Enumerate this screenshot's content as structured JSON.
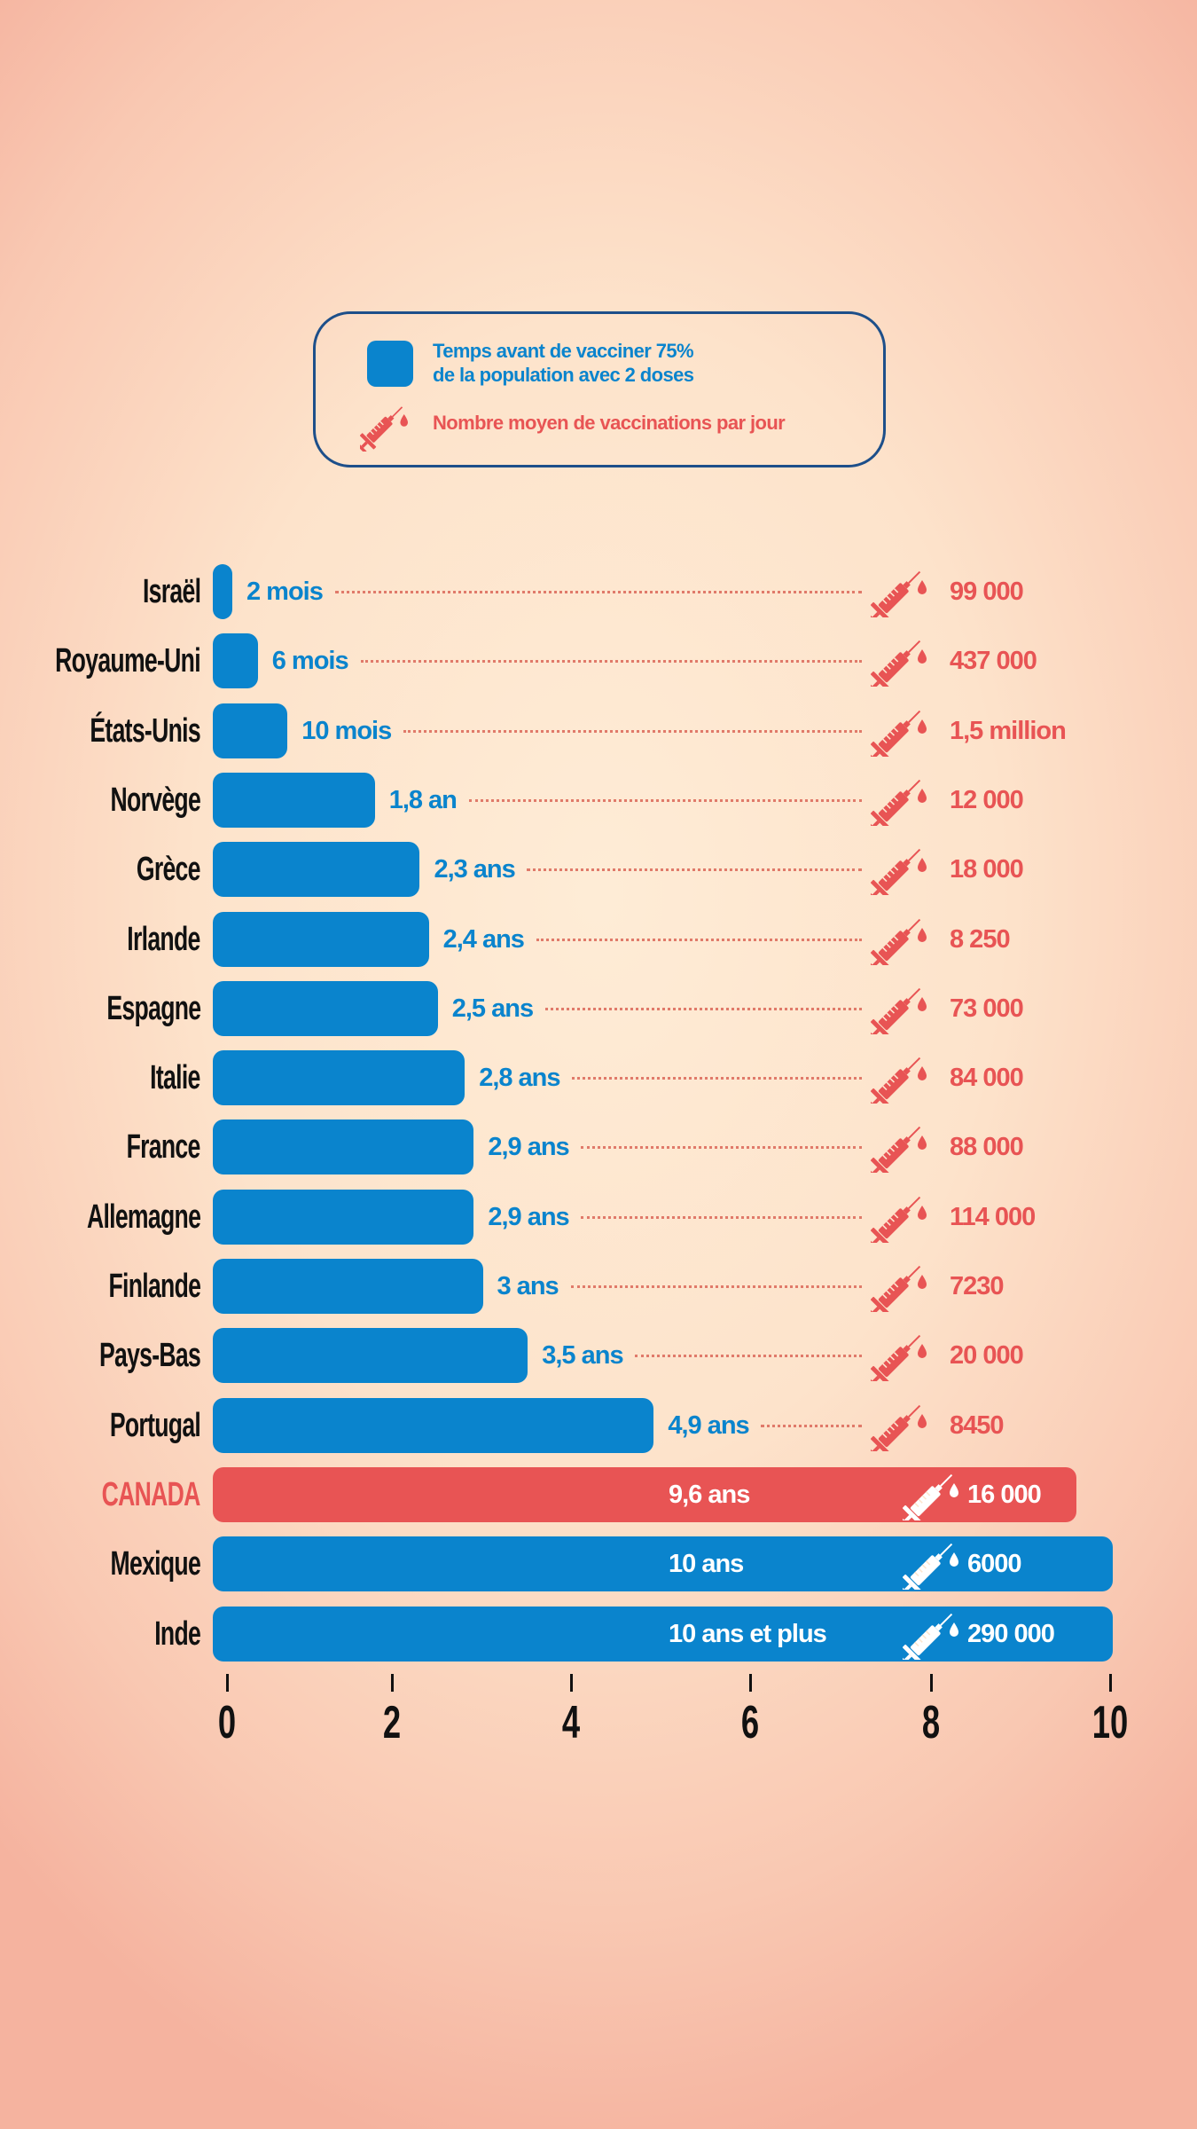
{
  "legend": {
    "bar_label_line1": "Temps avant de vacciner 75%",
    "bar_label_line2": "de la population avec 2 doses",
    "syringe_label": "Nombre moyen de vaccinations par jour"
  },
  "colors": {
    "blue": "#0a84cd",
    "red": "#e85454",
    "legend_border": "#1d4f8a"
  },
  "chart_data": {
    "type": "bar",
    "orientation": "horizontal",
    "title": "",
    "xlabel": "",
    "ylabel": "",
    "xlim": [
      0,
      10
    ],
    "x_ticks": [
      "0",
      "2",
      "4",
      "6",
      "8",
      "10"
    ],
    "series_bar_name": "Temps avant de vacciner 75% de la population avec 2 doses",
    "series_annotation_name": "Nombre moyen de vaccinations par jour",
    "rows": [
      {
        "country": "Israël",
        "years": 0.17,
        "label": "2 mois",
        "per_day": "99 000"
      },
      {
        "country": "Royaume-Uni",
        "years": 0.5,
        "label": "6 mois",
        "per_day": "437 000"
      },
      {
        "country": "États-Unis",
        "years": 0.83,
        "label": "10 mois",
        "per_day": "1,5 million"
      },
      {
        "country": "Norvège",
        "years": 1.8,
        "label": "1,8 an",
        "per_day": "12 000"
      },
      {
        "country": "Grèce",
        "years": 2.3,
        "label": "2,3 ans",
        "per_day": "18 000"
      },
      {
        "country": "Irlande",
        "years": 2.4,
        "label": "2,4 ans",
        "per_day": "8 250"
      },
      {
        "country": "Espagne",
        "years": 2.5,
        "label": "2,5 ans",
        "per_day": "73 000"
      },
      {
        "country": "Italie",
        "years": 2.8,
        "label": "2,8 ans",
        "per_day": "84 000"
      },
      {
        "country": "France",
        "years": 2.9,
        "label": "2,9 ans",
        "per_day": "88 000"
      },
      {
        "country": "Allemagne",
        "years": 2.9,
        "label": "2,9 ans",
        "per_day": "114 000"
      },
      {
        "country": "Finlande",
        "years": 3.0,
        "label": "3 ans",
        "per_day": "7230"
      },
      {
        "country": "Pays-Bas",
        "years": 3.5,
        "label": "3,5 ans",
        "per_day": "20 000"
      },
      {
        "country": "Portugal",
        "years": 4.9,
        "label": "4,9 ans",
        "per_day": "8450"
      },
      {
        "country": "CANADA",
        "years": 9.6,
        "label": "9,6 ans",
        "per_day": "16 000",
        "highlight": true
      },
      {
        "country": "Mexique",
        "years": 10,
        "label": "10 ans",
        "per_day": "6000"
      },
      {
        "country": "Inde",
        "years": 10,
        "label": "10 ans et plus",
        "per_day": "290 000"
      }
    ]
  }
}
